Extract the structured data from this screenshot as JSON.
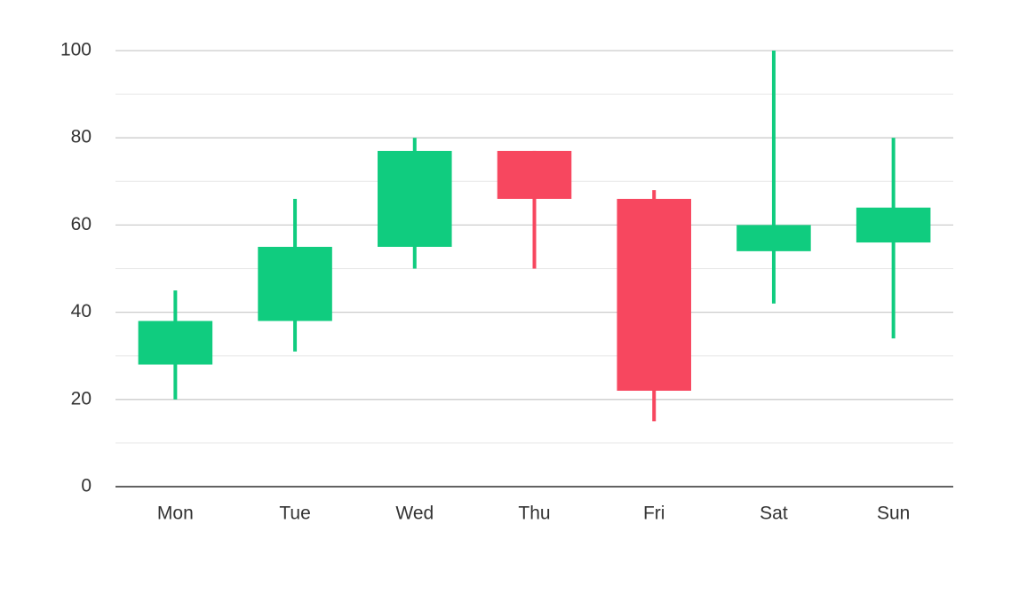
{
  "chart_data": {
    "type": "candlestick",
    "categories": [
      "Mon",
      "Tue",
      "Wed",
      "Thu",
      "Fri",
      "Sat",
      "Sun"
    ],
    "open": [
      28,
      38,
      55,
      77,
      66,
      54,
      56
    ],
    "high": [
      45,
      66,
      80,
      77,
      68,
      100,
      80
    ],
    "low": [
      20,
      31,
      50,
      50,
      15,
      42,
      34
    ],
    "close": [
      38,
      55,
      77,
      66,
      22,
      60,
      64
    ],
    "up_color": "#10cc7f",
    "down_color": "#f7475f",
    "ylim": [
      0,
      100
    ],
    "yticks": [
      0,
      20,
      40,
      60,
      80,
      100
    ],
    "grid": true
  }
}
